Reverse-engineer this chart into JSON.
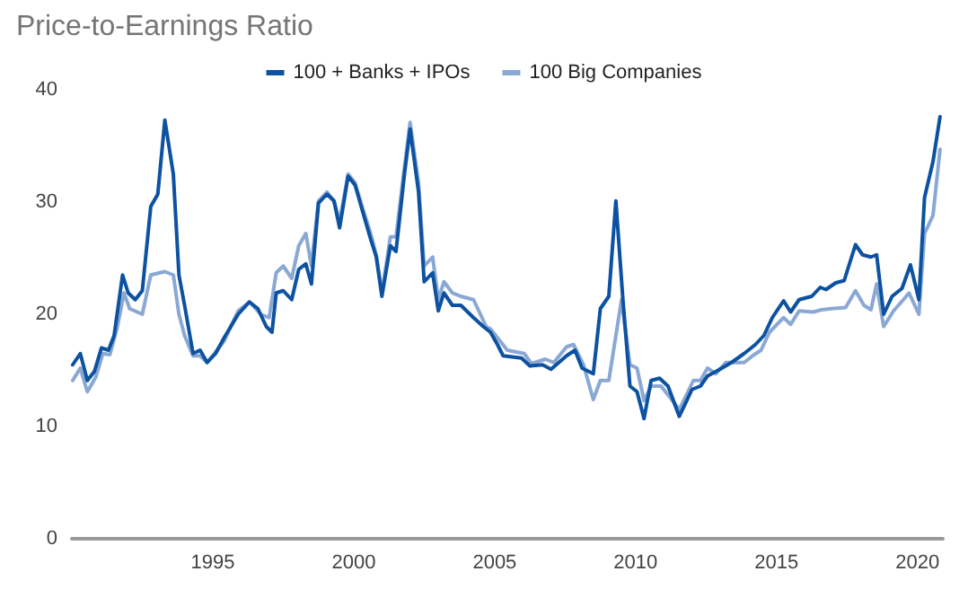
{
  "chart_data": {
    "type": "line",
    "title": "Price-to-Earnings Ratio",
    "xlim": [
      1990,
      2020.9
    ],
    "xticks": [
      1995,
      2000,
      2005,
      2010,
      2015,
      2020
    ],
    "ylim": [
      0,
      40
    ],
    "yticks": [
      0,
      10,
      20,
      30,
      40
    ],
    "grid": false,
    "legend": "top",
    "marker": "none",
    "line_style": "solid",
    "series": [
      {
        "name": "100 + Banks + IPOs",
        "color": "#0d52a1",
        "x": [
          1990.03,
          1990.3,
          1990.55,
          1990.8,
          1991.05,
          1991.3,
          1991.5,
          1991.8,
          1992.0,
          1992.25,
          1992.5,
          1992.8,
          1993.05,
          1993.3,
          1993.6,
          1993.8,
          1994.0,
          1994.3,
          1994.55,
          1994.8,
          1995.1,
          1995.4,
          1995.9,
          1996.3,
          1996.6,
          1996.9,
          1997.1,
          1997.25,
          1997.5,
          1997.8,
          1998.05,
          1998.3,
          1998.5,
          1998.75,
          1999.05,
          1999.3,
          1999.5,
          1999.8,
          2000.05,
          2000.3,
          2000.6,
          2000.8,
          2001.0,
          2001.3,
          2001.5,
          2001.8,
          2002.0,
          2002.3,
          2002.5,
          2002.8,
          2003.0,
          2003.2,
          2003.5,
          2003.8,
          2004.25,
          2004.6,
          2004.85,
          2005.1,
          2005.3,
          2005.95,
          2006.25,
          2006.7,
          2007.0,
          2007.55,
          2007.85,
          2008.1,
          2008.5,
          2008.75,
          2009.05,
          2009.3,
          2009.55,
          2009.8,
          2010.05,
          2010.3,
          2010.55,
          2010.85,
          2011.15,
          2011.55,
          2012.0,
          2012.3,
          2012.55,
          2012.85,
          2013.4,
          2013.85,
          2014.25,
          2014.55,
          2014.85,
          2015.25,
          2015.5,
          2015.8,
          2016.25,
          2016.55,
          2016.75,
          2017.1,
          2017.4,
          2017.8,
          2018.05,
          2018.35,
          2018.55,
          2018.8,
          2019.1,
          2019.45,
          2019.75,
          2020.05,
          2020.25,
          2020.55,
          2020.8
        ],
        "values": [
          15.5,
          16.5,
          14.1,
          14.9,
          17,
          16.8,
          18.1,
          23.5,
          21.9,
          21.3,
          22.1,
          29.6,
          30.7,
          37.3,
          32.5,
          23.5,
          20.8,
          16.5,
          16.8,
          15.7,
          16.5,
          17.9,
          20,
          21.1,
          20.5,
          18.9,
          18.4,
          21.9,
          22.1,
          21.3,
          24,
          24.5,
          22.7,
          29.9,
          30.7,
          30.1,
          27.7,
          32.3,
          31.5,
          29.3,
          26.7,
          25.1,
          21.6,
          26.1,
          25.6,
          32.5,
          36.5,
          30.9,
          22.9,
          23.7,
          20.3,
          21.9,
          20.8,
          20.8,
          19.7,
          18.9,
          18.4,
          17.3,
          16.3,
          16.1,
          15.4,
          15.5,
          15.1,
          16.3,
          16.8,
          15.2,
          14.7,
          20.5,
          21.6,
          30.1,
          21.3,
          13.6,
          13.1,
          10.7,
          14.1,
          14.3,
          13.6,
          10.9,
          13.3,
          13.6,
          14.5,
          14.9,
          15.7,
          16.5,
          17.3,
          18.1,
          19.7,
          21.2,
          20.2,
          21.3,
          21.6,
          22.4,
          22.2,
          22.8,
          23,
          26.2,
          25.3,
          25.1,
          25.3,
          20,
          21.6,
          22.3,
          24.4,
          21.3,
          30.4,
          33.6,
          37.6
        ]
      },
      {
        "name": "100 Big Companies",
        "color": "#8aa8d4",
        "x": [
          1990.03,
          1990.3,
          1990.55,
          1990.85,
          1991.1,
          1991.35,
          1991.6,
          1991.85,
          1992.05,
          1992.5,
          1992.8,
          1993.3,
          1993.6,
          1993.8,
          1994.0,
          1994.3,
          1994.55,
          1994.8,
          1995.4,
          1995.9,
          1996.3,
          1996.7,
          1997.0,
          1997.25,
          1997.5,
          1997.8,
          1998.05,
          1998.3,
          1998.5,
          1998.75,
          1999.05,
          1999.3,
          1999.5,
          1999.8,
          2000.05,
          2000.3,
          2000.6,
          2000.8,
          2001.0,
          2001.3,
          2001.5,
          2001.8,
          2002.0,
          2002.3,
          2002.5,
          2002.8,
          2003.0,
          2003.2,
          2003.5,
          2003.8,
          2004.25,
          2004.7,
          2004.85,
          2005.45,
          2006.05,
          2006.3,
          2006.8,
          2007.1,
          2007.55,
          2007.8,
          2008.15,
          2008.5,
          2008.75,
          2009.05,
          2009.5,
          2009.8,
          2010.05,
          2010.3,
          2010.55,
          2010.9,
          2011.25,
          2011.55,
          2012.05,
          2012.3,
          2012.55,
          2012.85,
          2013.2,
          2013.85,
          2014.15,
          2014.45,
          2014.75,
          2015.25,
          2015.5,
          2015.8,
          2016.3,
          2016.6,
          2016.95,
          2017.45,
          2017.8,
          2018.1,
          2018.35,
          2018.55,
          2018.8,
          2019.15,
          2019.5,
          2019.7,
          2020.05,
          2020.25,
          2020.55,
          2020.8
        ],
        "values": [
          14.1,
          15.2,
          13.1,
          14.4,
          16.5,
          16.4,
          18.7,
          21.9,
          20.5,
          20,
          23.5,
          23.8,
          23.5,
          20,
          18.1,
          16.3,
          16.3,
          15.7,
          17.6,
          20.3,
          21.1,
          20,
          19.7,
          23.7,
          24.3,
          23.2,
          26.1,
          27.2,
          24.3,
          30.1,
          30.9,
          30.1,
          28.3,
          32.5,
          31.7,
          29.6,
          27.2,
          25.3,
          21.9,
          26.9,
          26.9,
          33.1,
          37.1,
          31.7,
          24.3,
          25.1,
          21.3,
          22.9,
          21.9,
          21.6,
          21.3,
          18.9,
          18.7,
          16.8,
          16.5,
          15.6,
          16,
          15.7,
          17.1,
          17.3,
          15.5,
          12.4,
          14.1,
          14.1,
          21.3,
          15.5,
          15.2,
          12.3,
          13.6,
          13.6,
          12.5,
          11.5,
          14.1,
          14.1,
          15.2,
          14.7,
          15.7,
          15.7,
          16.3,
          16.8,
          18.4,
          19.7,
          19.1,
          20.3,
          20.2,
          20.4,
          20.5,
          20.6,
          22.1,
          20.8,
          20.4,
          22.7,
          18.9,
          20.3,
          21.3,
          21.9,
          20,
          27.2,
          28.8,
          34.7
        ]
      }
    ]
  }
}
